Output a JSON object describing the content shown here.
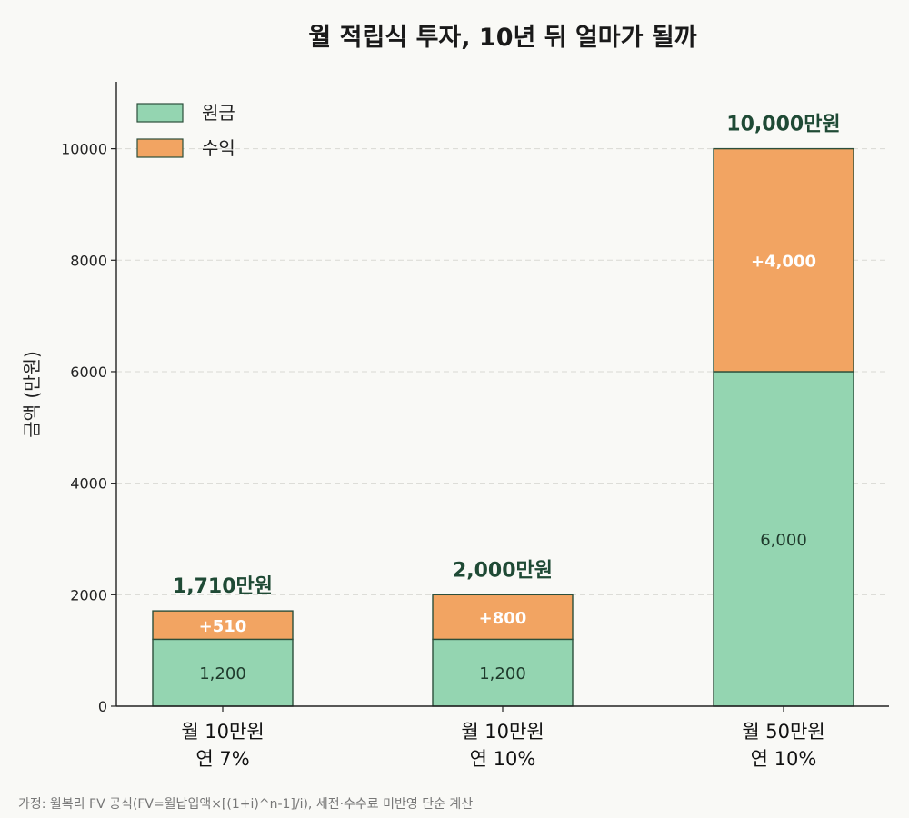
{
  "chart_data": {
    "type": "bar",
    "stacked": true,
    "title": "월 적립식 투자, 10년 뒤 얼마가 될까",
    "ylabel": "금액 (만원)",
    "xlabel": "",
    "ylim": [
      0,
      11200
    ],
    "yticks": [
      0,
      2000,
      4000,
      6000,
      8000,
      10000
    ],
    "grid": true,
    "legend_position": "top-left",
    "categories": [
      [
        "월 10만원",
        "연 7%"
      ],
      [
        "월 10만원",
        "연 10%"
      ],
      [
        "월 50만원",
        "연 10%"
      ]
    ],
    "series": [
      {
        "name": "원금",
        "values": [
          1200,
          1200,
          6000
        ],
        "labels": [
          "1,200",
          "1,200",
          "6,000"
        ],
        "color": "#94d5b1"
      },
      {
        "name": "수익",
        "values": [
          510,
          800,
          4000
        ],
        "labels": [
          "+510",
          "+800",
          "+4,000"
        ],
        "color": "#f2a462"
      }
    ],
    "totals": [
      1710,
      2000,
      10000
    ],
    "total_labels": [
      "1,710만원",
      "2,000만원",
      "10,000만원"
    ],
    "edge_color": "#2c4f3b"
  },
  "footnote": "가정: 월복리 FV 공식(FV=월납입액×[(1+i)^n-1]/i), 세전·수수료 미반영 단순 계산"
}
